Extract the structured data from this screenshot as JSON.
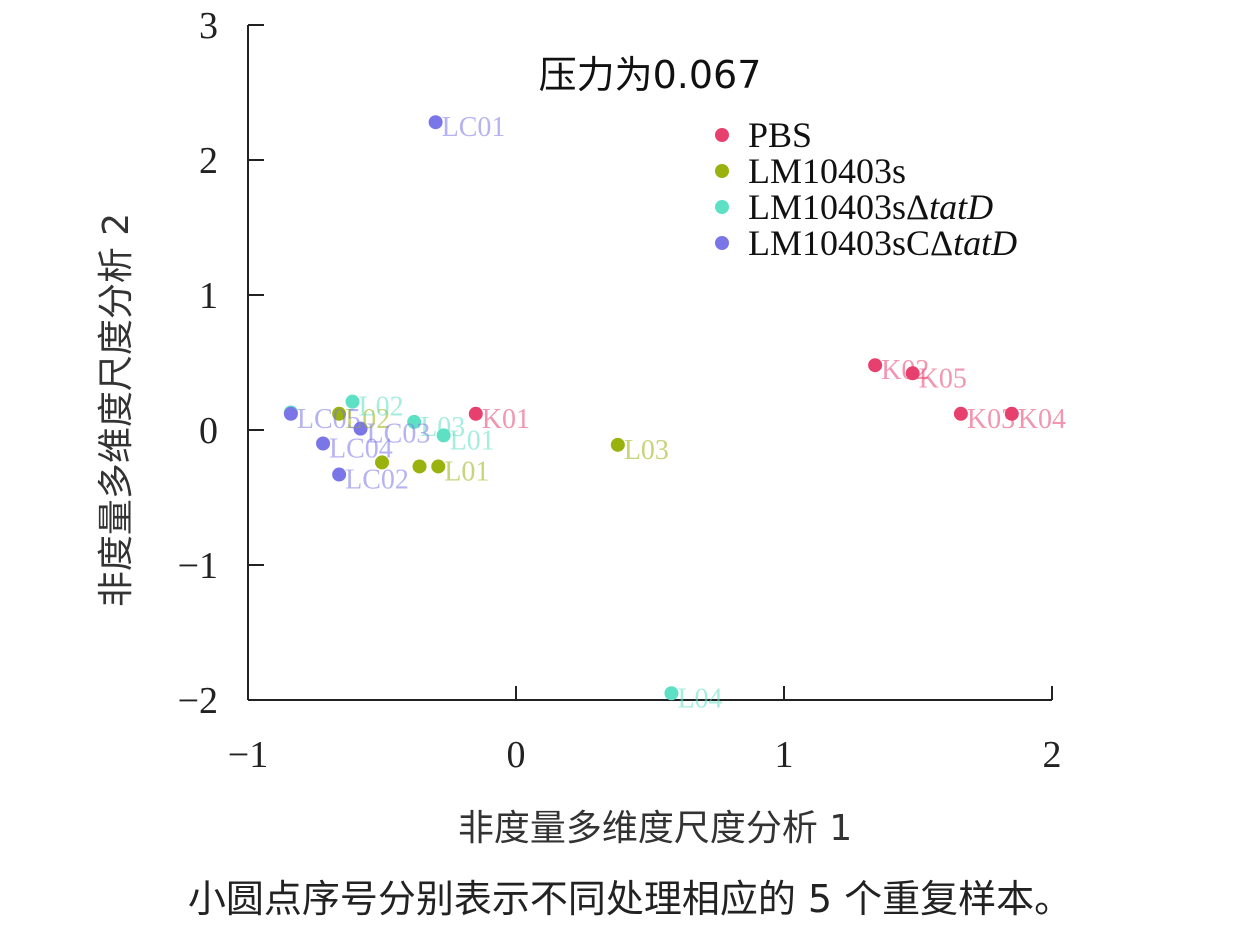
{
  "chart_data": {
    "type": "scatter",
    "title": "压力为0.067",
    "xlabel": "非度量多维度尺度分析 1",
    "ylabel": "非度量多维度尺度分析 2",
    "xlim": [
      -1,
      2
    ],
    "ylim": [
      -2,
      3
    ],
    "xticks": [
      "−1",
      "0",
      "1",
      "2"
    ],
    "yticks": [
      "3",
      "2",
      "1",
      "0",
      "−1",
      "−2"
    ],
    "xtick_values": [
      -1,
      0,
      1,
      2
    ],
    "ytick_values": [
      3,
      2,
      1,
      0,
      -1,
      -2
    ],
    "legend_position": "top-right",
    "legend": [
      {
        "prefix": "LM10403s",
        "italic": "",
        "suffix": "PBS",
        "label": "PBS",
        "color": "#e8406e"
      },
      {
        "prefix": "LM10403s",
        "italic": "",
        "suffix": "",
        "label": "LM10403s",
        "color": "#9ab20e"
      },
      {
        "prefix": "LM10403sΔ",
        "italic": "tatD",
        "suffix": "",
        "label": "LM10403sΔtatD",
        "color": "#5ee0c4"
      },
      {
        "prefix": "LM10403sCΔ",
        "italic": "tatD",
        "suffix": "",
        "label": "LM10403sCΔtatD",
        "color": "#7b76e8"
      }
    ],
    "series": [
      {
        "name": "PBS",
        "color": "#e8406e",
        "points": [
          {
            "x": -0.15,
            "y": 0.12,
            "label": "K01"
          },
          {
            "x": 1.34,
            "y": 0.48,
            "label": "K02"
          },
          {
            "x": 1.66,
            "y": 0.12,
            "label": "K03"
          },
          {
            "x": 1.85,
            "y": 0.12,
            "label": "K04"
          },
          {
            "x": 1.48,
            "y": 0.42,
            "label": "K05"
          }
        ]
      },
      {
        "name": "LM10403s",
        "color": "#9ab20e",
        "points": [
          {
            "x": -0.29,
            "y": -0.27,
            "label": "L01"
          },
          {
            "x": -0.66,
            "y": 0.12,
            "label": "L02"
          },
          {
            "x": 0.38,
            "y": -0.11,
            "label": "L03"
          },
          {
            "x": -0.36,
            "y": -0.27,
            "label": ""
          },
          {
            "x": -0.5,
            "y": -0.24,
            "label": ""
          }
        ]
      },
      {
        "name": "LM10403sΔtatD",
        "color": "#5ee0c4",
        "points": [
          {
            "x": -0.27,
            "y": -0.04,
            "label": "L01"
          },
          {
            "x": -0.61,
            "y": 0.21,
            "label": "L02"
          },
          {
            "x": -0.38,
            "y": 0.06,
            "label": "L03"
          },
          {
            "x": 0.58,
            "y": -1.95,
            "label": "L04"
          },
          {
            "x": -0.84,
            "y": 0.13,
            "label": ""
          }
        ]
      },
      {
        "name": "LM10403sCΔtatD",
        "color": "#7b76e8",
        "points": [
          {
            "x": -0.3,
            "y": 2.28,
            "label": "LC01"
          },
          {
            "x": -0.66,
            "y": -0.33,
            "label": "LC02"
          },
          {
            "x": -0.58,
            "y": 0.01,
            "label": "LC03"
          },
          {
            "x": -0.72,
            "y": -0.1,
            "label": "LC04"
          },
          {
            "x": -0.84,
            "y": 0.12,
            "label": "LC05"
          }
        ]
      }
    ]
  },
  "caption": "小圆点序号分别表示不同处理相应的 5 个重复样本。"
}
